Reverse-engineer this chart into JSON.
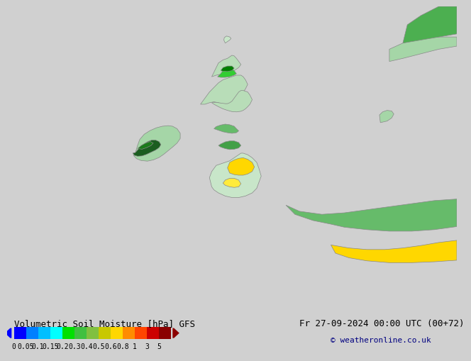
{
  "title_left": "Volumetric Soil Moisture [hPa] GFS",
  "title_right": "Fr 27-09-2024 00:00 UTC (00+72)",
  "copyright": "© weatheronline.co.uk",
  "colorbar_values": [
    0,
    0.05,
    0.1,
    0.15,
    0.2,
    0.3,
    0.4,
    0.5,
    0.6,
    0.8,
    1,
    3,
    5
  ],
  "colorbar_colors": [
    "#0000ff",
    "#0080ff",
    "#00bfff",
    "#00ffff",
    "#00e000",
    "#40c040",
    "#80c040",
    "#c8c800",
    "#ffd700",
    "#ff8c00",
    "#ff4500",
    "#cc0000",
    "#8b0000"
  ],
  "bg_color": "#d0d0d0",
  "map_bg": "#d0d0d0",
  "font_color": "#000000",
  "font_size_title": 9,
  "font_size_tick": 8,
  "fig_width": 6.34,
  "fig_height": 4.9
}
